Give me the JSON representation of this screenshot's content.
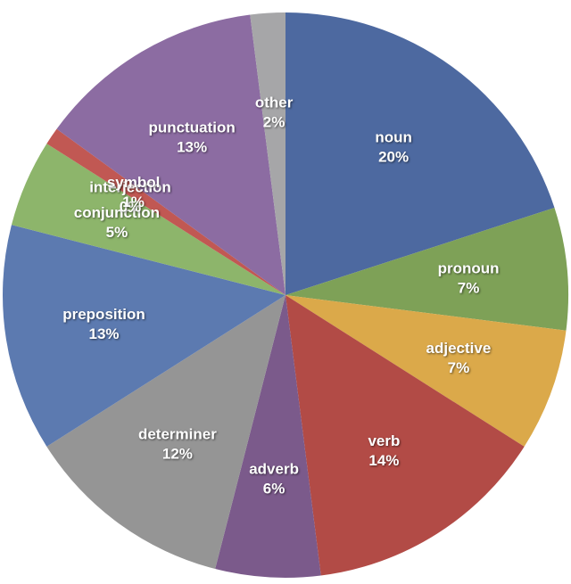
{
  "chart_data": {
    "type": "pie",
    "title": "",
    "legend": "none (labels inside slices)",
    "background": "#ffffff",
    "label_color": "#ffffff",
    "layout": {
      "start_angle": "12-oclock",
      "direction": "clockwise",
      "labels_position": "inside",
      "label_radius_fraction": 0.65
    },
    "slices": [
      {
        "label": "noun",
        "pct": 20,
        "pct_label": "20%",
        "color": "#4D69A0"
      },
      {
        "label": "pronoun",
        "pct": 7,
        "pct_label": "7%",
        "color": "#7EA157"
      },
      {
        "label": "adjective",
        "pct": 7,
        "pct_label": "7%",
        "color": "#DBA94A"
      },
      {
        "label": "verb",
        "pct": 14,
        "pct_label": "14%",
        "color": "#B24B46"
      },
      {
        "label": "adverb",
        "pct": 6,
        "pct_label": "6%",
        "color": "#7B5A8B"
      },
      {
        "label": "determiner",
        "pct": 12,
        "pct_label": "12%",
        "color": "#959595"
      },
      {
        "label": "preposition",
        "pct": 13,
        "pct_label": "13%",
        "color": "#5C7AB0"
      },
      {
        "label": "conjunction",
        "pct": 5,
        "pct_label": "5%",
        "color": "#8DB56B"
      },
      {
        "label": "interjection",
        "pct": 0,
        "pct_label": "0%",
        "color": "#E2B858"
      },
      {
        "label": "symbol",
        "pct": 1,
        "pct_label": "1%",
        "color": "#C15853"
      },
      {
        "label": "punctuation",
        "pct": 13,
        "pct_label": "13%",
        "color": "#8C6CA2"
      },
      {
        "label": "other",
        "pct": 2,
        "pct_label": "2%",
        "color": "#A6A6A8"
      }
    ]
  }
}
